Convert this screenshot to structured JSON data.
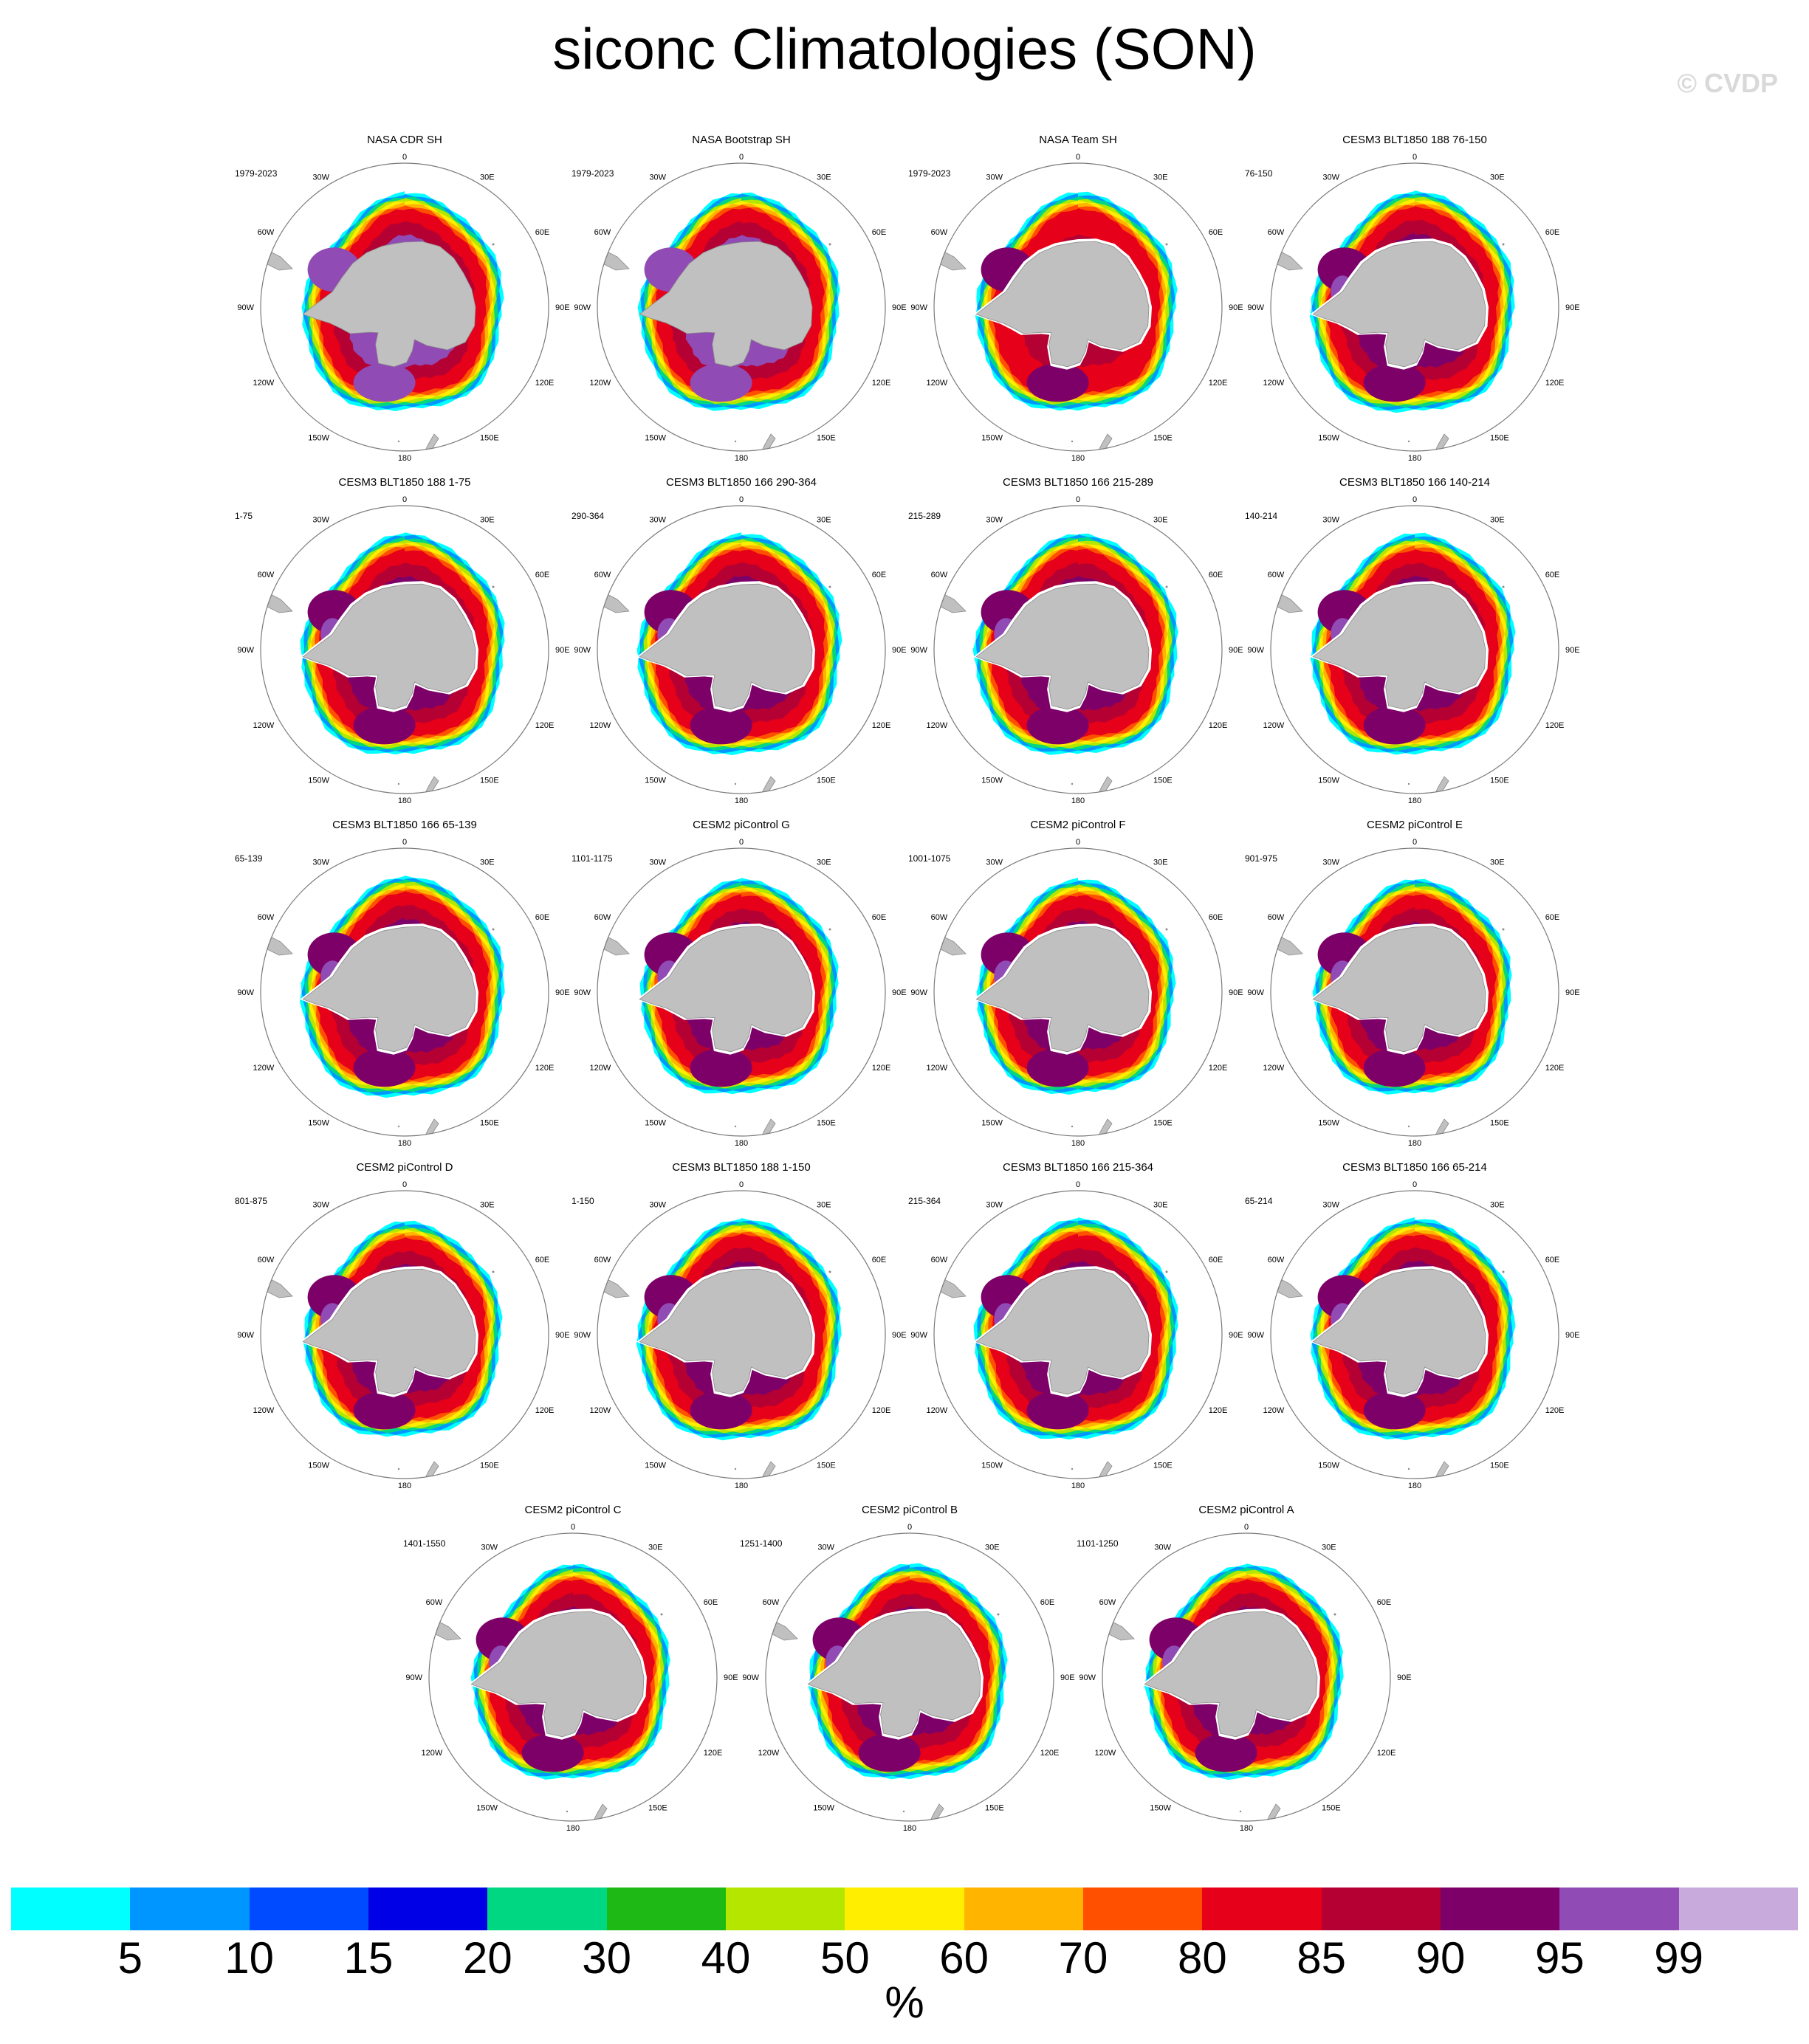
{
  "title": "siconc Climatologies (SON)",
  "watermark": "© CVDP",
  "lon_labels": [
    "0",
    "30E",
    "60E",
    "90E",
    "120E",
    "150E",
    "180",
    "150W",
    "120W",
    "90W",
    "60W",
    "30W"
  ],
  "colors": {
    "land": "#c0c0c0",
    "land_edge": "#8a8a8a",
    "circle": "#7a7a7a",
    "levels": [
      "#00ffff",
      "#0096ff",
      "#004bff",
      "#0000e6",
      "#00d782",
      "#1eb914",
      "#b4e600",
      "#ffee00",
      "#ffb400",
      "#ff5000",
      "#e60019",
      "#b40032",
      "#7d0069",
      "#914bb4",
      "#c8aadc"
    ]
  },
  "colorbar": {
    "tick_labels": [
      "5",
      "10",
      "15",
      "20",
      "30",
      "40",
      "50",
      "60",
      "70",
      "80",
      "85",
      "90",
      "95",
      "99"
    ],
    "unit": "%"
  },
  "chart_data": [
    {
      "type": "heatmap",
      "title": "NASA CDR SH",
      "period": "1979-2023",
      "style": "obs"
    },
    {
      "type": "heatmap",
      "title": "NASA Bootstrap SH",
      "period": "1979-2023",
      "style": "obs"
    },
    {
      "type": "heatmap",
      "title": "NASA Team SH",
      "period": "1979-2023",
      "style": "team"
    },
    {
      "type": "heatmap",
      "title": "CESM3 BLT1850 188 76-150",
      "period": "76-150",
      "style": "cesm3"
    },
    {
      "type": "heatmap",
      "title": "CESM3 BLT1850 188 1-75",
      "period": "1-75",
      "style": "cesm3"
    },
    {
      "type": "heatmap",
      "title": "CESM3 BLT1850 166 290-364",
      "period": "290-364",
      "style": "cesm3"
    },
    {
      "type": "heatmap",
      "title": "CESM3 BLT1850 166 215-289",
      "period": "215-289",
      "style": "cesm3"
    },
    {
      "type": "heatmap",
      "title": "CESM3 BLT1850 166 140-214",
      "period": "140-214",
      "style": "cesm3"
    },
    {
      "type": "heatmap",
      "title": "CESM3 BLT1850 166 65-139",
      "period": "65-139",
      "style": "cesm3"
    },
    {
      "type": "heatmap",
      "title": "CESM2 piControl G",
      "period": "1101-1175",
      "style": "cesm2"
    },
    {
      "type": "heatmap",
      "title": "CESM2 piControl F",
      "period": "1001-1075",
      "style": "cesm2"
    },
    {
      "type": "heatmap",
      "title": "CESM2 piControl E",
      "period": "901-975",
      "style": "cesm2"
    },
    {
      "type": "heatmap",
      "title": "CESM2 piControl D",
      "period": "801-875",
      "style": "cesm2"
    },
    {
      "type": "heatmap",
      "title": "CESM3 BLT1850 188 1-150",
      "period": "1-150",
      "style": "cesm3"
    },
    {
      "type": "heatmap",
      "title": "CESM3 BLT1850 166 215-364",
      "period": "215-364",
      "style": "cesm3"
    },
    {
      "type": "heatmap",
      "title": "CESM3 BLT1850 166 65-214",
      "period": "65-214",
      "style": "cesm3"
    },
    {
      "type": "heatmap",
      "title": "CESM2 piControl C",
      "period": "1401-1550",
      "style": "cesm2"
    },
    {
      "type": "heatmap",
      "title": "CESM2 piControl B",
      "period": "1251-1400",
      "style": "cesm2"
    },
    {
      "type": "heatmap",
      "title": "CESM2 piControl A",
      "period": "1101-1250",
      "style": "cesm2"
    }
  ]
}
